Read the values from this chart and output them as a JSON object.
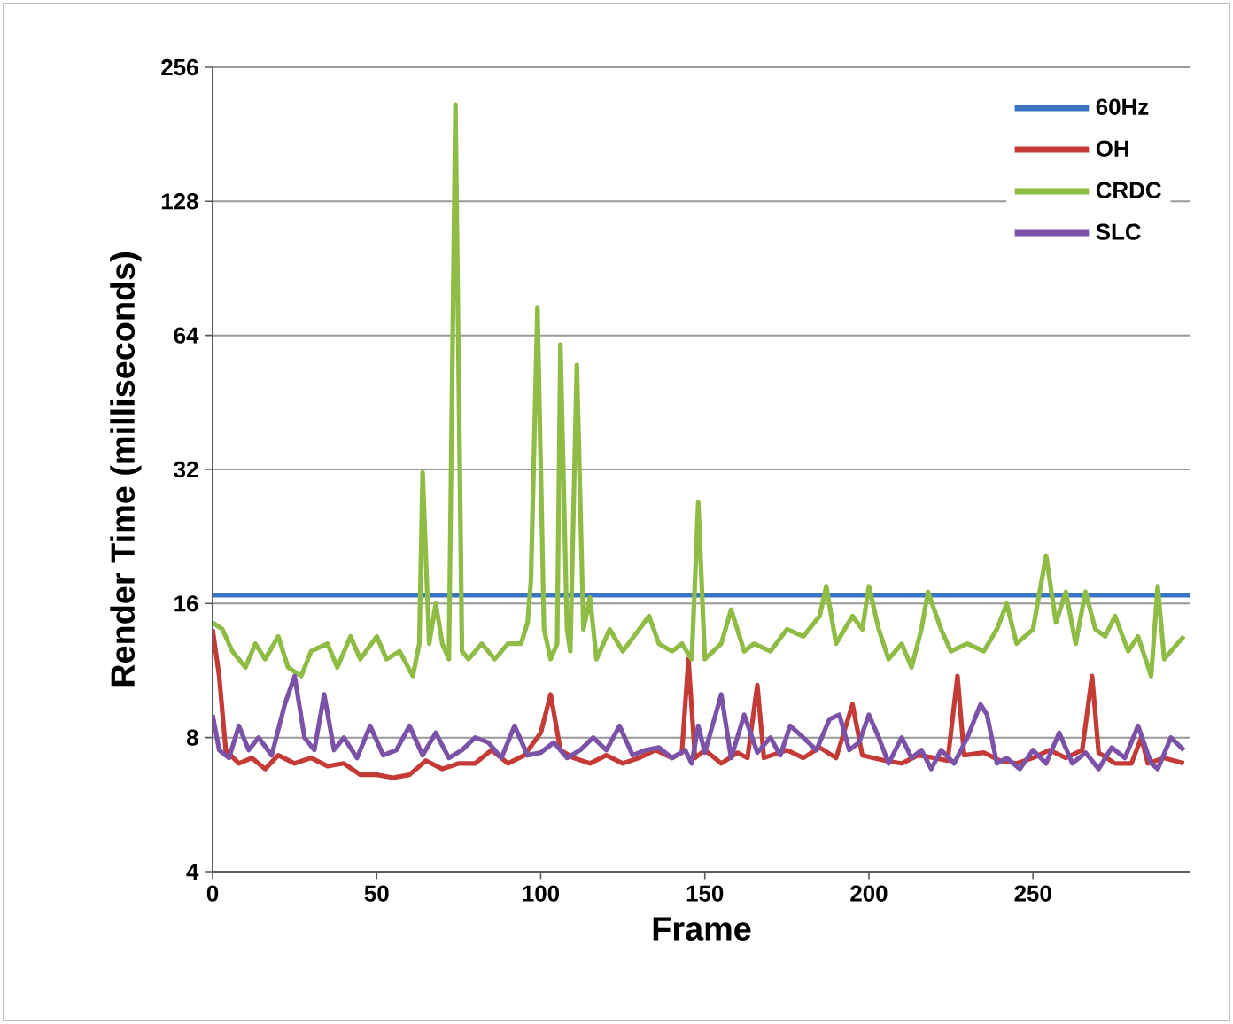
{
  "chart_data": {
    "type": "line",
    "xlabel": "Frame",
    "ylabel": "Render Time (milliseconds)",
    "log": "y",
    "grid": "y",
    "legend": "top right",
    "xlim": [
      0,
      298
    ],
    "xticks": [
      0,
      50,
      100,
      150,
      200,
      250
    ],
    "ylim": [
      4,
      256
    ],
    "yticks": [
      4,
      8,
      16,
      32,
      64,
      128,
      256
    ],
    "series": [
      {
        "name": "60Hz",
        "color": "#3a75c4",
        "x": [
          0,
          298
        ],
        "values": [
          16.7,
          16.7
        ]
      },
      {
        "name": "OH",
        "color": "#c43a35",
        "x": [
          0,
          2,
          4,
          8,
          12,
          16,
          20,
          25,
          30,
          35,
          40,
          45,
          50,
          55,
          60,
          65,
          70,
          75,
          80,
          85,
          90,
          95,
          100,
          103,
          106,
          110,
          115,
          120,
          125,
          130,
          135,
          140,
          143,
          145,
          147,
          150,
          155,
          160,
          163,
          166,
          168,
          175,
          180,
          185,
          190,
          195,
          198,
          205,
          210,
          215,
          220,
          224,
          227,
          229,
          235,
          240,
          245,
          250,
          255,
          260,
          265,
          268,
          270,
          275,
          280,
          283,
          285,
          290,
          296
        ],
        "values": [
          14,
          11,
          7.5,
          7,
          7.2,
          6.8,
          7.3,
          7,
          7.2,
          6.9,
          7,
          6.6,
          6.6,
          6.5,
          6.6,
          7.1,
          6.8,
          7,
          7,
          7.5,
          7,
          7.3,
          8.2,
          10,
          7.5,
          7.2,
          7,
          7.3,
          7,
          7.2,
          7.5,
          7.2,
          7.4,
          12,
          7.2,
          7.5,
          7,
          7.4,
          7.2,
          10.5,
          7.2,
          7.5,
          7.2,
          7.6,
          7.2,
          9.5,
          7.3,
          7.1,
          7,
          7.3,
          7.2,
          7.1,
          11,
          7.3,
          7.4,
          7.1,
          7,
          7.2,
          7.5,
          7.2,
          7.5,
          11,
          7.4,
          7,
          7,
          8,
          7,
          7.2,
          7
        ]
      },
      {
        "name": "CRDC",
        "color": "#8fbc45",
        "x": [
          0,
          3,
          6,
          10,
          13,
          16,
          20,
          23,
          27,
          30,
          35,
          38,
          42,
          45,
          50,
          53,
          57,
          61,
          63,
          64,
          66,
          68,
          70,
          72,
          74,
          76,
          78,
          82,
          86,
          90,
          94,
          96,
          97,
          99,
          101,
          103,
          105,
          106,
          108,
          109,
          111,
          113,
          115,
          117,
          121,
          125,
          130,
          133,
          136,
          140,
          143,
          146,
          148,
          150,
          155,
          158,
          162,
          165,
          170,
          175,
          180,
          185,
          187,
          190,
          195,
          198,
          200,
          203,
          206,
          210,
          213,
          216,
          218,
          222,
          225,
          230,
          235,
          239,
          242,
          245,
          250,
          254,
          257,
          260,
          263,
          266,
          269,
          272,
          275,
          279,
          282,
          286,
          288,
          290,
          294,
          296
        ],
        "values": [
          14.5,
          14,
          12.5,
          11.5,
          13,
          12,
          13.5,
          11.5,
          11,
          12.5,
          13,
          11.5,
          13.5,
          12,
          13.5,
          12,
          12.5,
          11,
          13,
          31.5,
          13,
          16,
          13,
          12,
          211,
          12.5,
          12,
          13,
          12,
          13,
          13,
          14.5,
          18,
          74,
          14,
          12,
          13,
          61,
          14,
          12.5,
          55,
          14,
          16.5,
          12,
          14,
          12.5,
          14,
          15,
          13,
          12.5,
          13,
          12,
          27,
          12,
          13,
          15.5,
          12.5,
          13,
          12.5,
          14,
          13.5,
          15,
          17.5,
          13,
          15,
          14,
          17.5,
          14,
          12,
          13,
          11.5,
          14,
          17,
          14,
          12.5,
          13,
          12.5,
          14,
          16,
          13,
          14,
          20.5,
          14.5,
          17,
          13,
          17,
          14,
          13.5,
          15,
          12.5,
          13.5,
          11,
          17.5,
          12,
          13,
          13.5
        ]
      },
      {
        "name": "SLC",
        "color": "#7b52a8",
        "x": [
          0,
          2,
          5,
          8,
          11,
          14,
          18,
          22,
          25,
          28,
          31,
          34,
          37,
          40,
          44,
          48,
          52,
          56,
          60,
          64,
          68,
          72,
          76,
          80,
          84,
          88,
          92,
          96,
          100,
          104,
          108,
          112,
          116,
          120,
          124,
          128,
          132,
          136,
          140,
          144,
          146,
          148,
          150,
          155,
          158,
          162,
          166,
          170,
          173,
          176,
          180,
          184,
          188,
          191,
          194,
          197,
          200,
          203,
          206,
          210,
          213,
          216,
          219,
          222,
          226,
          230,
          234,
          236,
          239,
          242,
          246,
          250,
          254,
          258,
          262,
          266,
          270,
          274,
          278,
          282,
          286,
          288,
          292,
          296
        ],
        "values": [
          9,
          7.5,
          7.2,
          8.5,
          7.5,
          8,
          7.3,
          9.5,
          11,
          8,
          7.5,
          10,
          7.5,
          8,
          7.2,
          8.5,
          7.3,
          7.5,
          8.5,
          7.3,
          8.2,
          7.2,
          7.5,
          8,
          7.8,
          7.2,
          8.5,
          7.3,
          7.4,
          7.8,
          7.2,
          7.5,
          8,
          7.5,
          8.5,
          7.3,
          7.5,
          7.6,
          7.2,
          7.5,
          7,
          8.5,
          7.4,
          10,
          7.2,
          9,
          7.4,
          8,
          7.3,
          8.5,
          8,
          7.5,
          8.8,
          9,
          7.5,
          7.8,
          9,
          8,
          7,
          8,
          7.2,
          7.5,
          6.8,
          7.5,
          7,
          8,
          9.5,
          9,
          7,
          7.2,
          6.8,
          7.5,
          7,
          8.2,
          7,
          7.4,
          6.8,
          7.6,
          7.2,
          8.5,
          7,
          6.8,
          8,
          7.5
        ]
      }
    ]
  }
}
